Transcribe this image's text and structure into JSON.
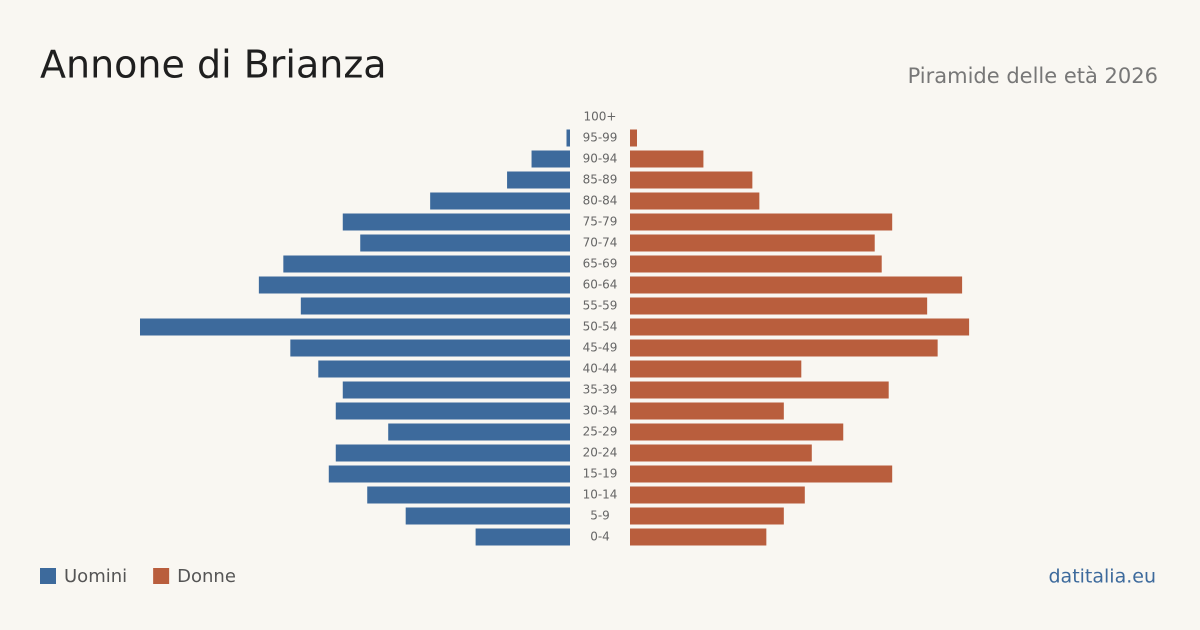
{
  "chart_data": {
    "type": "pyramid",
    "title": "Annone di Brianza",
    "subtitle": "Piramide delle età 2026",
    "source": "datitalia.eu",
    "categories": [
      "100+",
      "95-99",
      "90-94",
      "85-89",
      "80-84",
      "75-79",
      "70-74",
      "65-69",
      "60-64",
      "55-59",
      "50-54",
      "45-49",
      "40-44",
      "35-39",
      "30-34",
      "25-29",
      "20-24",
      "15-19",
      "10-14",
      "5-9",
      "0-4"
    ],
    "series": [
      {
        "name": "Uomini",
        "color": "#3d6a9c",
        "values": [
          0,
          1,
          11,
          18,
          40,
          65,
          60,
          82,
          89,
          77,
          123,
          80,
          72,
          65,
          67,
          52,
          67,
          69,
          58,
          47,
          27
        ]
      },
      {
        "name": "Donne",
        "color": "#b95e3d",
        "values": [
          0,
          2,
          21,
          35,
          37,
          75,
          70,
          72,
          95,
          85,
          97,
          88,
          49,
          74,
          44,
          61,
          52,
          75,
          50,
          44,
          39
        ]
      }
    ]
  }
}
